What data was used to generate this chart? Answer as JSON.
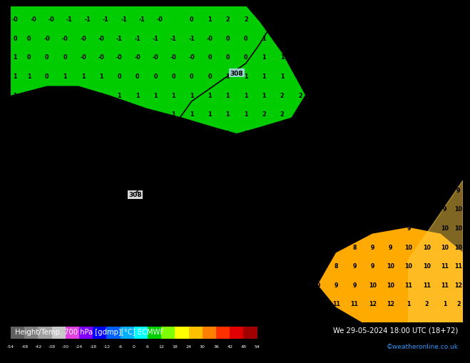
{
  "title_left": "Height/Temp. 700 hPa [gdmp][°C] ECMWF",
  "title_right": "We 29-05-2024 18:00 UTC (18+72)",
  "subtitle_right": "©weatheronline.co.uk",
  "colorbar_colors": [
    "#606060",
    "#808080",
    "#a0a0a0",
    "#c8c8c8",
    "#e040e0",
    "#8000ff",
    "#0000ff",
    "#0060ff",
    "#00b0ff",
    "#00ffff",
    "#00d000",
    "#80ff00",
    "#ffff00",
    "#ffc000",
    "#ff8000",
    "#ff3000",
    "#e00000",
    "#a00000"
  ],
  "colorbar_tick_labels": [
    "-54",
    "-48",
    "-42",
    "-38",
    "-30",
    "-24",
    "-18",
    "-12",
    "-6",
    "0",
    "6",
    "12",
    "18",
    "24",
    "30",
    "36",
    "42",
    "48",
    "54"
  ],
  "fig_bg": "#000000",
  "map_bg": "#ffee00",
  "green_color": "#00cc00",
  "orange_color": "#ffaa00",
  "contour_color": "#000000",
  "label_308_color": "#000000",
  "label_308_bg": "#b0d8f0",
  "number_color": "#000000",
  "number_fontsize": 5.8,
  "number_fontsize_small": 5.0,
  "coastline_color": "#9090a0",
  "border_color": "#000000"
}
